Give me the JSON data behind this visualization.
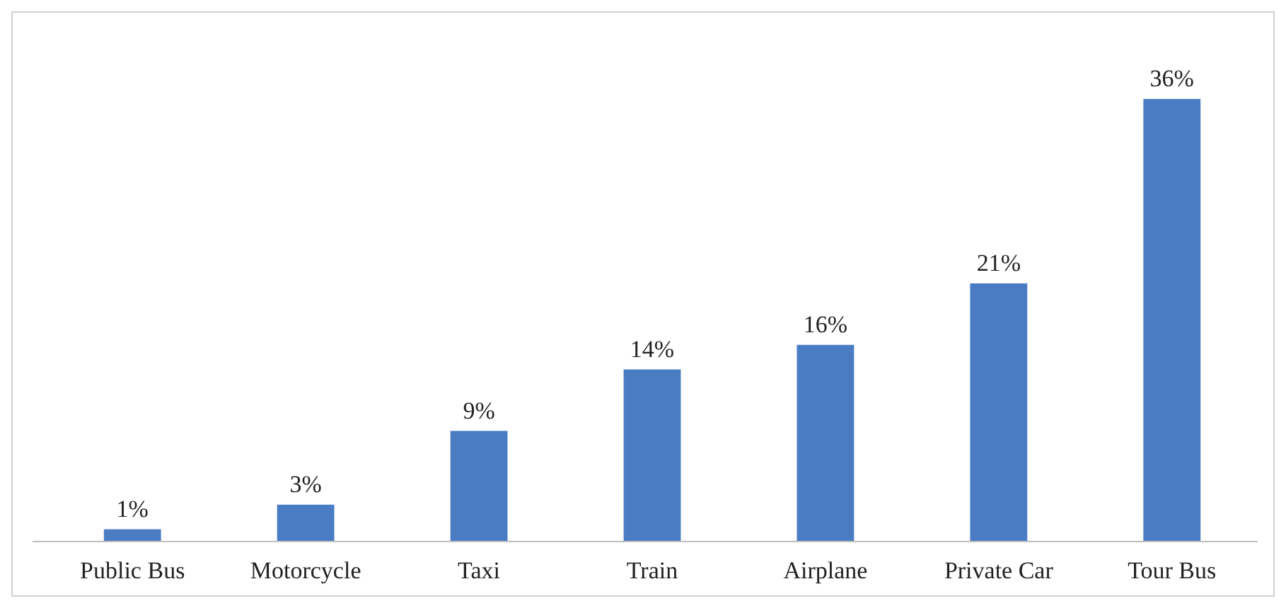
{
  "chart_data": {
    "type": "bar",
    "categories": [
      "Public Bus",
      "Motorcycle",
      "Taxi",
      "Train",
      "Airplane",
      "Private Car",
      "Tour Bus"
    ],
    "values": [
      1,
      3,
      9,
      14,
      16,
      21,
      36
    ],
    "value_labels": [
      "1%",
      "3%",
      "9%",
      "14%",
      "16%",
      "21%",
      "36%"
    ],
    "color": "#4a7cc4"
  }
}
